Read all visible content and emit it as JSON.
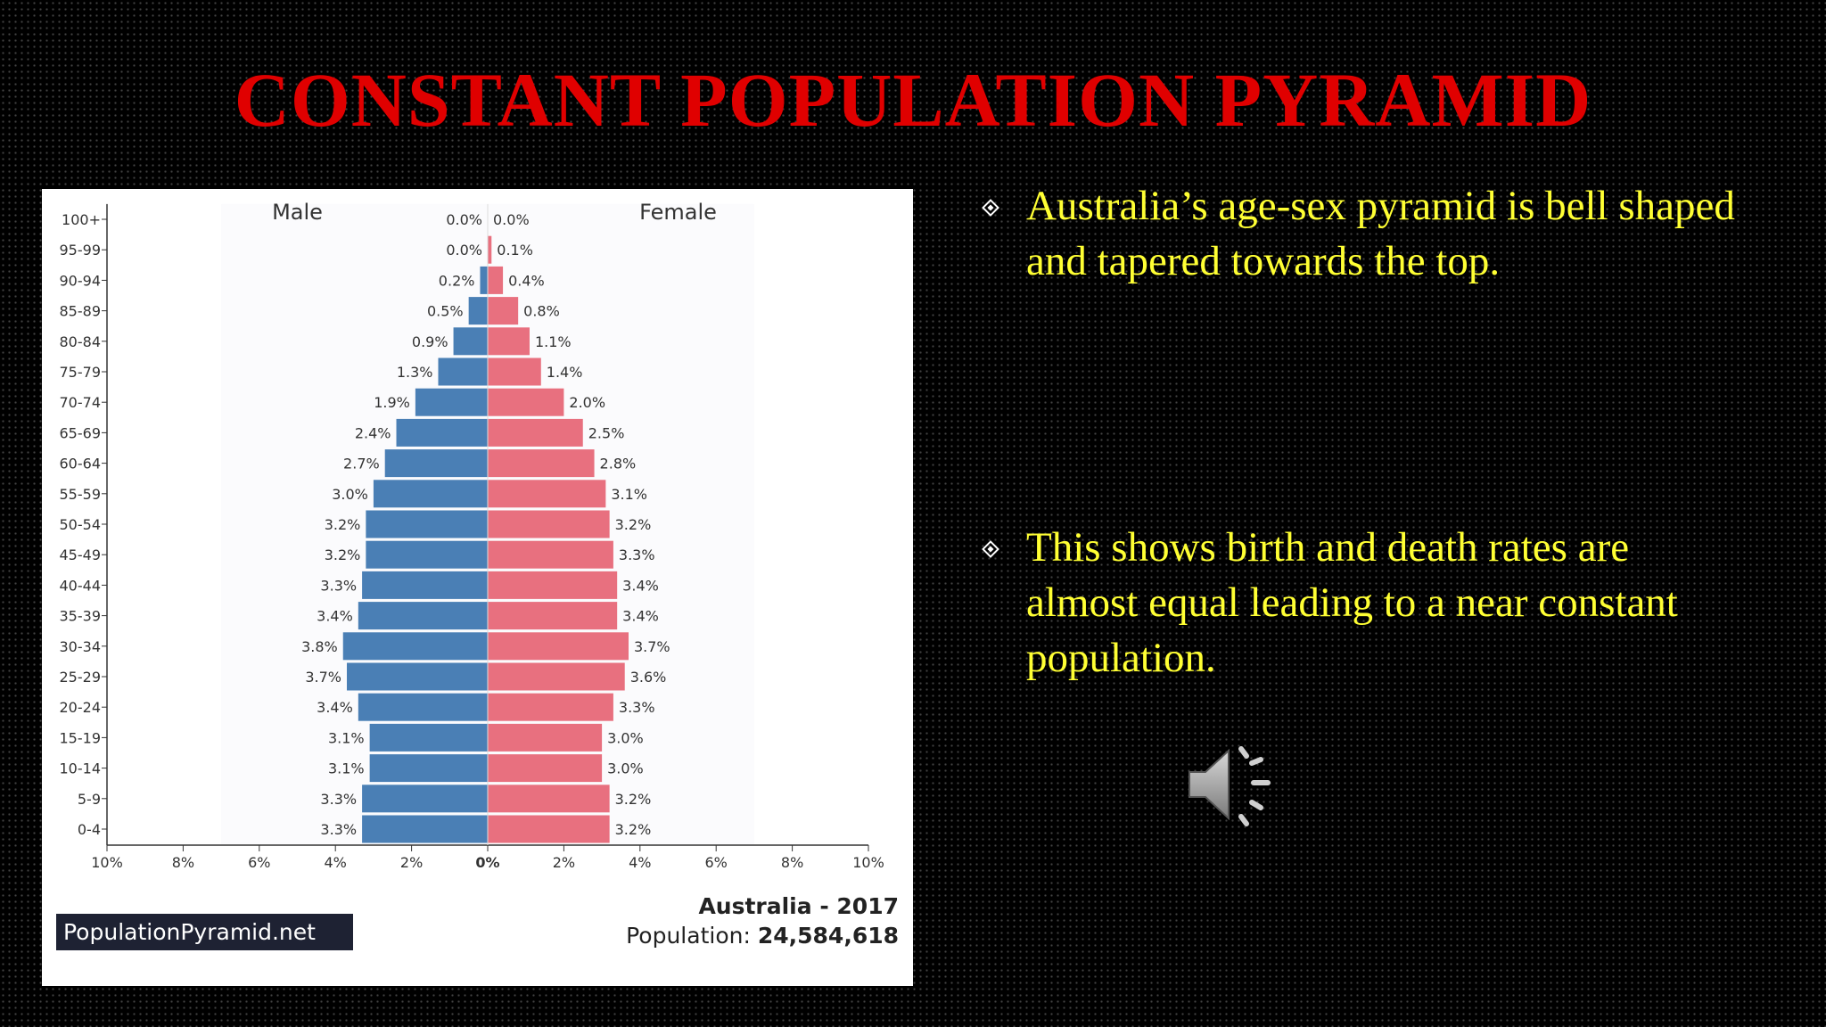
{
  "slide": {
    "title": "CONSTANT POPULATION PYRAMID",
    "bullets": [
      "Australia’s age-sex pyramid is bell shaped and tapered towards the top.",
      "This shows birth and death rates are almost equal leading to a near constant population."
    ],
    "audio_icon": "speaker-icon"
  },
  "colors": {
    "title": "#e00000",
    "bullet_text": "#ffff33",
    "male_bar": "#4a7fb5",
    "female_bar": "#e8707f"
  },
  "chart_data": {
    "type": "bar",
    "orientation": "horizontal-pyramid",
    "categories": [
      "100+",
      "95-99",
      "90-94",
      "85-89",
      "80-84",
      "75-79",
      "70-74",
      "65-69",
      "60-64",
      "55-59",
      "50-54",
      "45-49",
      "40-44",
      "35-39",
      "30-34",
      "25-29",
      "20-24",
      "15-19",
      "10-14",
      "5-9",
      "0-4"
    ],
    "series": [
      {
        "name": "Male",
        "values": [
          0.0,
          0.0,
          0.2,
          0.5,
          0.9,
          1.3,
          1.9,
          2.4,
          2.7,
          3.0,
          3.2,
          3.2,
          3.3,
          3.4,
          3.8,
          3.7,
          3.4,
          3.1,
          3.1,
          3.3,
          3.3
        ],
        "labels": [
          "0.0%",
          "0.0%",
          "0.2%",
          "0.5%",
          "0.9%",
          "1.3%",
          "1.9%",
          "2.4%",
          "2.7%",
          "3.0%",
          "3.2%",
          "3.2%",
          "3.3%",
          "3.4%",
          "3.8%",
          "3.7%",
          "3.4%",
          "3.1%",
          "3.1%",
          "3.3%",
          "3.3%"
        ]
      },
      {
        "name": "Female",
        "values": [
          0.0,
          0.1,
          0.4,
          0.8,
          1.1,
          1.4,
          2.0,
          2.5,
          2.8,
          3.1,
          3.2,
          3.3,
          3.4,
          3.4,
          3.7,
          3.6,
          3.3,
          3.0,
          3.0,
          3.2,
          3.2
        ],
        "labels": [
          "0.0%",
          "0.1%",
          "0.4%",
          "0.8%",
          "1.1%",
          "1.4%",
          "2.0%",
          "2.5%",
          "2.8%",
          "3.1%",
          "3.2%",
          "3.3%",
          "3.4%",
          "3.4%",
          "3.7%",
          "3.6%",
          "3.3%",
          "3.0%",
          "3.0%",
          "3.2%",
          "3.2%"
        ]
      }
    ],
    "xlim": [
      -10,
      10
    ],
    "xticks": [
      -10,
      -8,
      -6,
      -4,
      -2,
      0,
      2,
      4,
      6,
      8,
      10
    ],
    "xtick_labels": [
      "10%",
      "8%",
      "6%",
      "4%",
      "2%",
      "0%",
      "2%",
      "4%",
      "6%",
      "8%",
      "10%"
    ],
    "country": "Australia - 2017",
    "population_label": "Population:",
    "population_value": "24,584,618",
    "source": "PopulationPyramid.net"
  }
}
